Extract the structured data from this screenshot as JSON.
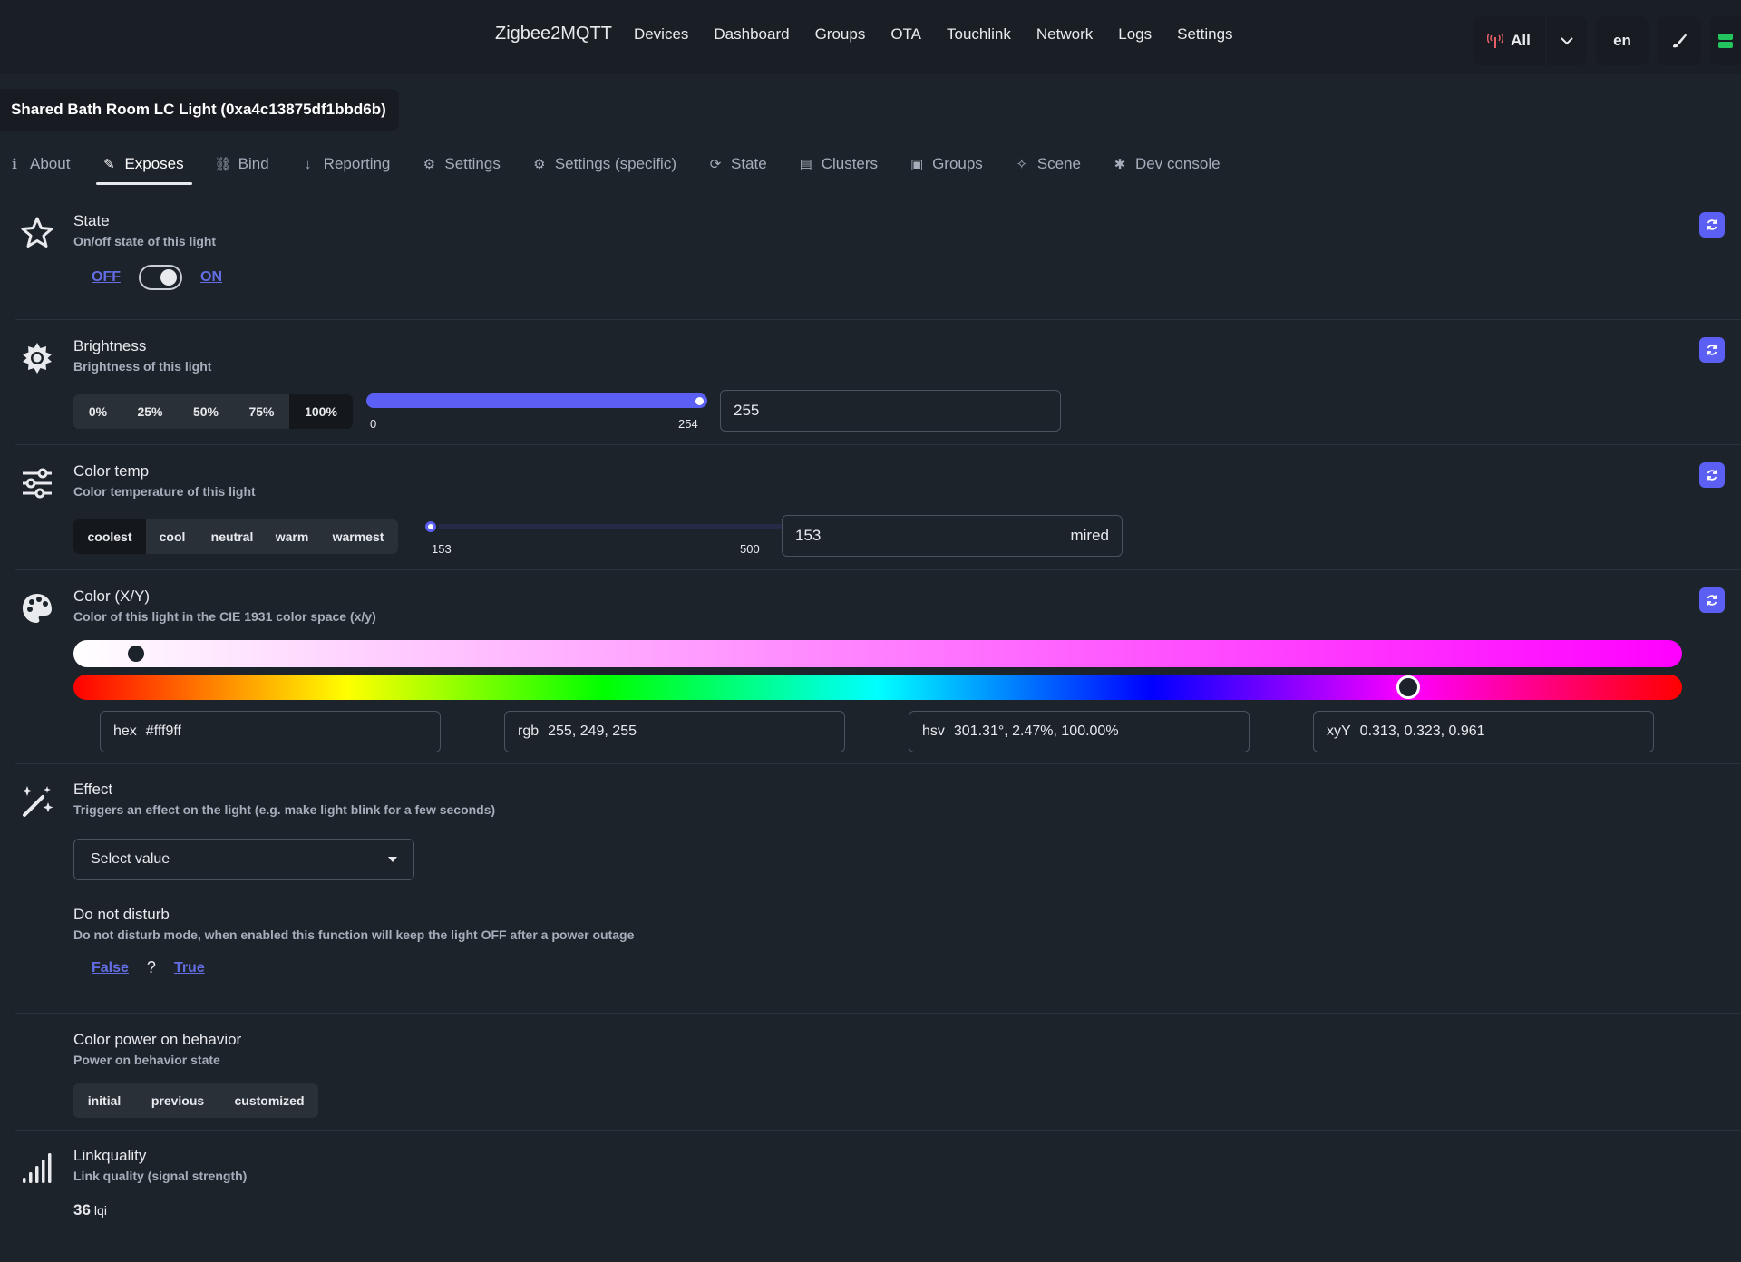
{
  "nav": {
    "brand": "Zigbee2MQTT",
    "links": [
      "Devices",
      "Dashboard",
      "Groups",
      "OTA",
      "Touchlink",
      "Network",
      "Logs",
      "Settings"
    ],
    "filter_label": "All",
    "language": "en"
  },
  "device": {
    "title": "Shared Bath Room LC Light (0xa4c13875df1bbd6b)"
  },
  "tabs": [
    {
      "label": "About",
      "icon": "info-icon"
    },
    {
      "label": "Exposes",
      "icon": "pencil-icon"
    },
    {
      "label": "Bind",
      "icon": "link-icon"
    },
    {
      "label": "Reporting",
      "icon": "arrow-down-icon"
    },
    {
      "label": "Settings",
      "icon": "gears-icon"
    },
    {
      "label": "Settings (specific)",
      "icon": "gear-icon"
    },
    {
      "label": "State",
      "icon": "refresh-icon"
    },
    {
      "label": "Clusters",
      "icon": "document-icon"
    },
    {
      "label": "Groups",
      "icon": "object-group-icon"
    },
    {
      "label": "Scene",
      "icon": "wand-icon"
    },
    {
      "label": "Dev console",
      "icon": "bug-icon"
    }
  ],
  "active_tab": "Exposes",
  "state": {
    "title": "State",
    "description": "On/off state of this light",
    "off_label": "OFF",
    "on_label": "ON",
    "value": "ON"
  },
  "brightness": {
    "title": "Brightness",
    "description": "Brightness of this light",
    "presets": [
      "0%",
      "25%",
      "50%",
      "75%",
      "100%"
    ],
    "active_preset": "100%",
    "min": "0",
    "max": "254",
    "value": "255"
  },
  "color_temp": {
    "title": "Color temp",
    "description": "Color temperature of this light",
    "presets": [
      "coolest",
      "cool",
      "neutral",
      "warm",
      "warmest"
    ],
    "active_preset": "coolest",
    "min": "153",
    "max": "500",
    "value": "153",
    "unit": "mired"
  },
  "color_xy": {
    "title": "Color (X/Y)",
    "description": "Color of this light in the CIE 1931 color space (x/y)",
    "saturation_position": 0.027,
    "hue_position": 0.83,
    "hex_label": "hex",
    "hex_value": "#fff9ff",
    "rgb_label": "rgb",
    "rgb_value": "255, 249, 255",
    "hsv_label": "hsv",
    "hsv_value": "301.31°, 2.47%, 100.00%",
    "xyy_label": "xyY",
    "xyy_value": "0.313, 0.323, 0.961"
  },
  "effect": {
    "title": "Effect",
    "description": "Triggers an effect on the light (e.g. make light blink for a few seconds)",
    "select_placeholder": "Select value"
  },
  "do_not_disturb": {
    "title": "Do not disturb",
    "description": "Do not disturb mode, when enabled this function will keep the light OFF after a power outage",
    "false_label": "False",
    "unknown_label": "?",
    "true_label": "True"
  },
  "color_power_on": {
    "title": "Color power on behavior",
    "description": "Power on behavior state",
    "options": [
      "initial",
      "previous",
      "customized"
    ]
  },
  "linkquality": {
    "title": "Linkquality",
    "description": "Link quality (signal strength)",
    "value": "36",
    "unit": "lqi"
  },
  "colors": {
    "background": "#1d232a",
    "accent": "#5b5ff3",
    "link": "#646ee4"
  }
}
